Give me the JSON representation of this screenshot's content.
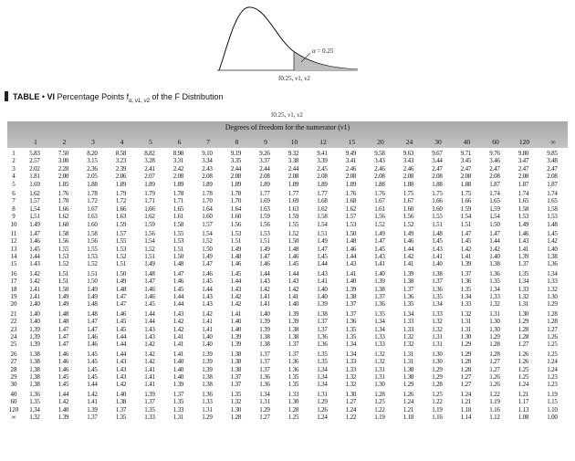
{
  "curve": {
    "alpha_label": "α = 0.25",
    "quantile_label": "f0.25, ν1, ν2"
  },
  "table": {
    "label": "TABLE",
    "number": "VI",
    "title": "Percentage Points f",
    "subscript": "α, ν1, ν2",
    "title_end": " of the F Distribution",
    "sub_formula": "f0.25, ν1, ν2",
    "header_band": "Degrees of freedom for the numerator (ν1)",
    "columns": [
      "1",
      "2",
      "3",
      "4",
      "5",
      "6",
      "7",
      "8",
      "9",
      "10",
      "12",
      "15",
      "20",
      "24",
      "30",
      "40",
      "60",
      "120",
      "∞"
    ],
    "rows": [
      {
        "v2": "1",
        "vals": [
          "5.83",
          "7.50",
          "8.20",
          "8.58",
          "8.82",
          "8.98",
          "9.10",
          "9.19",
          "9.26",
          "9.32",
          "9.41",
          "9.49",
          "9.58",
          "9.63",
          "9.67",
          "9.71",
          "9.76",
          "9.80",
          "9.85"
        ]
      },
      {
        "v2": "2",
        "vals": [
          "2.57",
          "3.00",
          "3.15",
          "3.23",
          "3.28",
          "3.31",
          "3.34",
          "3.35",
          "3.37",
          "3.38",
          "3.39",
          "3.41",
          "3.43",
          "3.43",
          "3.44",
          "3.45",
          "3.46",
          "3.47",
          "3.48"
        ]
      },
      {
        "v2": "3",
        "vals": [
          "2.02",
          "2.28",
          "2.36",
          "2.39",
          "2.41",
          "2.42",
          "2.43",
          "2.44",
          "2.44",
          "2.44",
          "2.45",
          "2.46",
          "2.46",
          "2.46",
          "2.47",
          "2.47",
          "2.47",
          "2.47",
          "2.47"
        ]
      },
      {
        "v2": "4",
        "vals": [
          "1.81",
          "2.00",
          "2.05",
          "2.06",
          "2.07",
          "2.08",
          "2.08",
          "2.08",
          "2.08",
          "2.08",
          "2.08",
          "2.08",
          "2.08",
          "2.08",
          "2.08",
          "2.08",
          "2.08",
          "2.08",
          "2.08"
        ]
      },
      {
        "v2": "5",
        "vals": [
          "1.69",
          "1.85",
          "1.88",
          "1.89",
          "1.89",
          "1.89",
          "1.89",
          "1.89",
          "1.89",
          "1.89",
          "1.89",
          "1.89",
          "1.88",
          "1.88",
          "1.88",
          "1.88",
          "1.87",
          "1.87",
          "1.87"
        ]
      },
      {
        "v2": "6",
        "vals": [
          "1.62",
          "1.76",
          "1.78",
          "1.79",
          "1.79",
          "1.78",
          "1.78",
          "1.78",
          "1.77",
          "1.77",
          "1.77",
          "1.76",
          "1.76",
          "1.75",
          "1.75",
          "1.75",
          "1.74",
          "1.74",
          "1.74"
        ]
      },
      {
        "v2": "7",
        "vals": [
          "1.57",
          "1.70",
          "1.72",
          "1.72",
          "1.71",
          "1.71",
          "1.70",
          "1.70",
          "1.69",
          "1.69",
          "1.68",
          "1.68",
          "1.67",
          "1.67",
          "1.66",
          "1.66",
          "1.65",
          "1.65",
          "1.65"
        ]
      },
      {
        "v2": "8",
        "vals": [
          "1.54",
          "1.66",
          "1.67",
          "1.66",
          "1.66",
          "1.65",
          "1.64",
          "1.64",
          "1.63",
          "1.63",
          "1.62",
          "1.62",
          "1.61",
          "1.60",
          "1.60",
          "1.59",
          "1.59",
          "1.58",
          "1.58"
        ]
      },
      {
        "v2": "9",
        "vals": [
          "1.51",
          "1.62",
          "1.63",
          "1.63",
          "1.62",
          "1.61",
          "1.60",
          "1.60",
          "1.59",
          "1.59",
          "1.58",
          "1.57",
          "1.56",
          "1.56",
          "1.55",
          "1.54",
          "1.54",
          "1.53",
          "1.53"
        ]
      },
      {
        "v2": "10",
        "vals": [
          "1.49",
          "1.60",
          "1.60",
          "1.59",
          "1.59",
          "1.58",
          "1.57",
          "1.56",
          "1.56",
          "1.55",
          "1.54",
          "1.53",
          "1.52",
          "1.52",
          "1.51",
          "1.51",
          "1.50",
          "1.49",
          "1.48"
        ]
      },
      {
        "v2": "11",
        "vals": [
          "1.47",
          "1.58",
          "1.58",
          "1.57",
          "1.56",
          "1.55",
          "1.54",
          "1.53",
          "1.53",
          "1.52",
          "1.51",
          "1.50",
          "1.49",
          "1.49",
          "1.48",
          "1.47",
          "1.47",
          "1.46",
          "1.45"
        ]
      },
      {
        "v2": "12",
        "vals": [
          "1.46",
          "1.56",
          "1.56",
          "1.55",
          "1.54",
          "1.53",
          "1.52",
          "1.51",
          "1.51",
          "1.50",
          "1.49",
          "1.48",
          "1.47",
          "1.46",
          "1.45",
          "1.45",
          "1.44",
          "1.43",
          "1.42"
        ]
      },
      {
        "v2": "13",
        "vals": [
          "1.45",
          "1.55",
          "1.55",
          "1.53",
          "1.52",
          "1.51",
          "1.50",
          "1.49",
          "1.49",
          "1.48",
          "1.47",
          "1.46",
          "1.45",
          "1.44",
          "1.43",
          "1.42",
          "1.42",
          "1.41",
          "1.40"
        ]
      },
      {
        "v2": "14",
        "vals": [
          "1.44",
          "1.53",
          "1.53",
          "1.52",
          "1.51",
          "1.50",
          "1.49",
          "1.48",
          "1.47",
          "1.46",
          "1.45",
          "1.44",
          "1.43",
          "1.42",
          "1.41",
          "1.41",
          "1.40",
          "1.39",
          "1.38"
        ]
      },
      {
        "v2": "15",
        "vals": [
          "1.43",
          "1.52",
          "1.52",
          "1.51",
          "1.49",
          "1.48",
          "1.47",
          "1.46",
          "1.46",
          "1.45",
          "1.44",
          "1.43",
          "1.41",
          "1.41",
          "1.40",
          "1.39",
          "1.38",
          "1.37",
          "1.36"
        ]
      },
      {
        "v2": "16",
        "vals": [
          "1.42",
          "1.51",
          "1.51",
          "1.50",
          "1.48",
          "1.47",
          "1.46",
          "1.45",
          "1.44",
          "1.44",
          "1.43",
          "1.41",
          "1.40",
          "1.39",
          "1.38",
          "1.37",
          "1.36",
          "1.35",
          "1.34"
        ]
      },
      {
        "v2": "17",
        "vals": [
          "1.42",
          "1.51",
          "1.50",
          "1.49",
          "1.47",
          "1.46",
          "1.45",
          "1.44",
          "1.43",
          "1.43",
          "1.41",
          "1.40",
          "1.39",
          "1.38",
          "1.37",
          "1.36",
          "1.35",
          "1.34",
          "1.33"
        ]
      },
      {
        "v2": "18",
        "vals": [
          "1.41",
          "1.50",
          "1.49",
          "1.48",
          "1.46",
          "1.45",
          "1.44",
          "1.43",
          "1.42",
          "1.42",
          "1.40",
          "1.39",
          "1.38",
          "1.37",
          "1.36",
          "1.35",
          "1.34",
          "1.33",
          "1.32"
        ]
      },
      {
        "v2": "19",
        "vals": [
          "1.41",
          "1.49",
          "1.49",
          "1.47",
          "1.46",
          "1.44",
          "1.43",
          "1.42",
          "1.41",
          "1.41",
          "1.40",
          "1.38",
          "1.37",
          "1.36",
          "1.35",
          "1.34",
          "1.33",
          "1.32",
          "1.30"
        ]
      },
      {
        "v2": "20",
        "vals": [
          "1.40",
          "1.49",
          "1.48",
          "1.47",
          "1.45",
          "1.44",
          "1.43",
          "1.42",
          "1.41",
          "1.40",
          "1.39",
          "1.37",
          "1.36",
          "1.35",
          "1.34",
          "1.33",
          "1.32",
          "1.31",
          "1.29"
        ]
      },
      {
        "v2": "21",
        "vals": [
          "1.40",
          "1.48",
          "1.48",
          "1.46",
          "1.44",
          "1.43",
          "1.42",
          "1.41",
          "1.40",
          "1.39",
          "1.38",
          "1.37",
          "1.35",
          "1.34",
          "1.33",
          "1.32",
          "1.31",
          "1.30",
          "1.28"
        ]
      },
      {
        "v2": "22",
        "vals": [
          "1.40",
          "1.48",
          "1.47",
          "1.45",
          "1.44",
          "1.42",
          "1.41",
          "1.40",
          "1.39",
          "1.39",
          "1.37",
          "1.36",
          "1.34",
          "1.33",
          "1.32",
          "1.31",
          "1.30",
          "1.29",
          "1.28"
        ]
      },
      {
        "v2": "23",
        "vals": [
          "1.39",
          "1.47",
          "1.47",
          "1.45",
          "1.43",
          "1.42",
          "1.41",
          "1.40",
          "1.39",
          "1.38",
          "1.37",
          "1.35",
          "1.34",
          "1.33",
          "1.32",
          "1.31",
          "1.30",
          "1.28",
          "1.27"
        ]
      },
      {
        "v2": "24",
        "vals": [
          "1.39",
          "1.47",
          "1.46",
          "1.44",
          "1.43",
          "1.41",
          "1.40",
          "1.39",
          "1.38",
          "1.38",
          "1.36",
          "1.35",
          "1.33",
          "1.32",
          "1.31",
          "1.30",
          "1.29",
          "1.28",
          "1.26"
        ]
      },
      {
        "v2": "25",
        "vals": [
          "1.39",
          "1.47",
          "1.46",
          "1.44",
          "1.42",
          "1.41",
          "1.40",
          "1.39",
          "1.38",
          "1.37",
          "1.36",
          "1.34",
          "1.33",
          "1.32",
          "1.31",
          "1.29",
          "1.28",
          "1.27",
          "1.25"
        ]
      },
      {
        "v2": "26",
        "vals": [
          "1.38",
          "1.46",
          "1.45",
          "1.44",
          "1.42",
          "1.41",
          "1.39",
          "1.38",
          "1.37",
          "1.37",
          "1.35",
          "1.34",
          "1.32",
          "1.31",
          "1.30",
          "1.29",
          "1.28",
          "1.26",
          "1.25"
        ]
      },
      {
        "v2": "27",
        "vals": [
          "1.38",
          "1.46",
          "1.45",
          "1.43",
          "1.42",
          "1.40",
          "1.39",
          "1.38",
          "1.37",
          "1.36",
          "1.35",
          "1.33",
          "1.32",
          "1.31",
          "1.30",
          "1.28",
          "1.27",
          "1.26",
          "1.24"
        ]
      },
      {
        "v2": "28",
        "vals": [
          "1.38",
          "1.46",
          "1.45",
          "1.43",
          "1.41",
          "1.40",
          "1.39",
          "1.38",
          "1.37",
          "1.36",
          "1.34",
          "1.33",
          "1.31",
          "1.30",
          "1.29",
          "1.28",
          "1.27",
          "1.25",
          "1.24"
        ]
      },
      {
        "v2": "29",
        "vals": [
          "1.38",
          "1.45",
          "1.45",
          "1.43",
          "1.41",
          "1.40",
          "1.38",
          "1.37",
          "1.36",
          "1.35",
          "1.34",
          "1.32",
          "1.31",
          "1.30",
          "1.29",
          "1.27",
          "1.26",
          "1.25",
          "1.23"
        ]
      },
      {
        "v2": "30",
        "vals": [
          "1.38",
          "1.45",
          "1.44",
          "1.42",
          "1.41",
          "1.39",
          "1.38",
          "1.37",
          "1.36",
          "1.35",
          "1.34",
          "1.32",
          "1.30",
          "1.29",
          "1.28",
          "1.27",
          "1.26",
          "1.24",
          "1.23"
        ]
      },
      {
        "v2": "40",
        "vals": [
          "1.36",
          "1.44",
          "1.42",
          "1.40",
          "1.39",
          "1.37",
          "1.36",
          "1.35",
          "1.34",
          "1.33",
          "1.31",
          "1.30",
          "1.28",
          "1.26",
          "1.25",
          "1.24",
          "1.22",
          "1.21",
          "1.19"
        ]
      },
      {
        "v2": "60",
        "vals": [
          "1.35",
          "1.42",
          "1.41",
          "1.38",
          "1.37",
          "1.35",
          "1.33",
          "1.32",
          "1.31",
          "1.30",
          "1.29",
          "1.27",
          "1.25",
          "1.24",
          "1.22",
          "1.21",
          "1.19",
          "1.17",
          "1.15"
        ]
      },
      {
        "v2": "120",
        "vals": [
          "1.34",
          "1.40",
          "1.39",
          "1.37",
          "1.35",
          "1.33",
          "1.31",
          "1.30",
          "1.29",
          "1.28",
          "1.26",
          "1.24",
          "1.22",
          "1.21",
          "1.19",
          "1.18",
          "1.16",
          "1.13",
          "1.10"
        ]
      },
      {
        "v2": "∞",
        "vals": [
          "1.32",
          "1.39",
          "1.37",
          "1.35",
          "1.33",
          "1.31",
          "1.29",
          "1.28",
          "1.27",
          "1.25",
          "1.24",
          "1.22",
          "1.19",
          "1.18",
          "1.16",
          "1.14",
          "1.12",
          "1.08",
          "1.00"
        ]
      }
    ]
  }
}
